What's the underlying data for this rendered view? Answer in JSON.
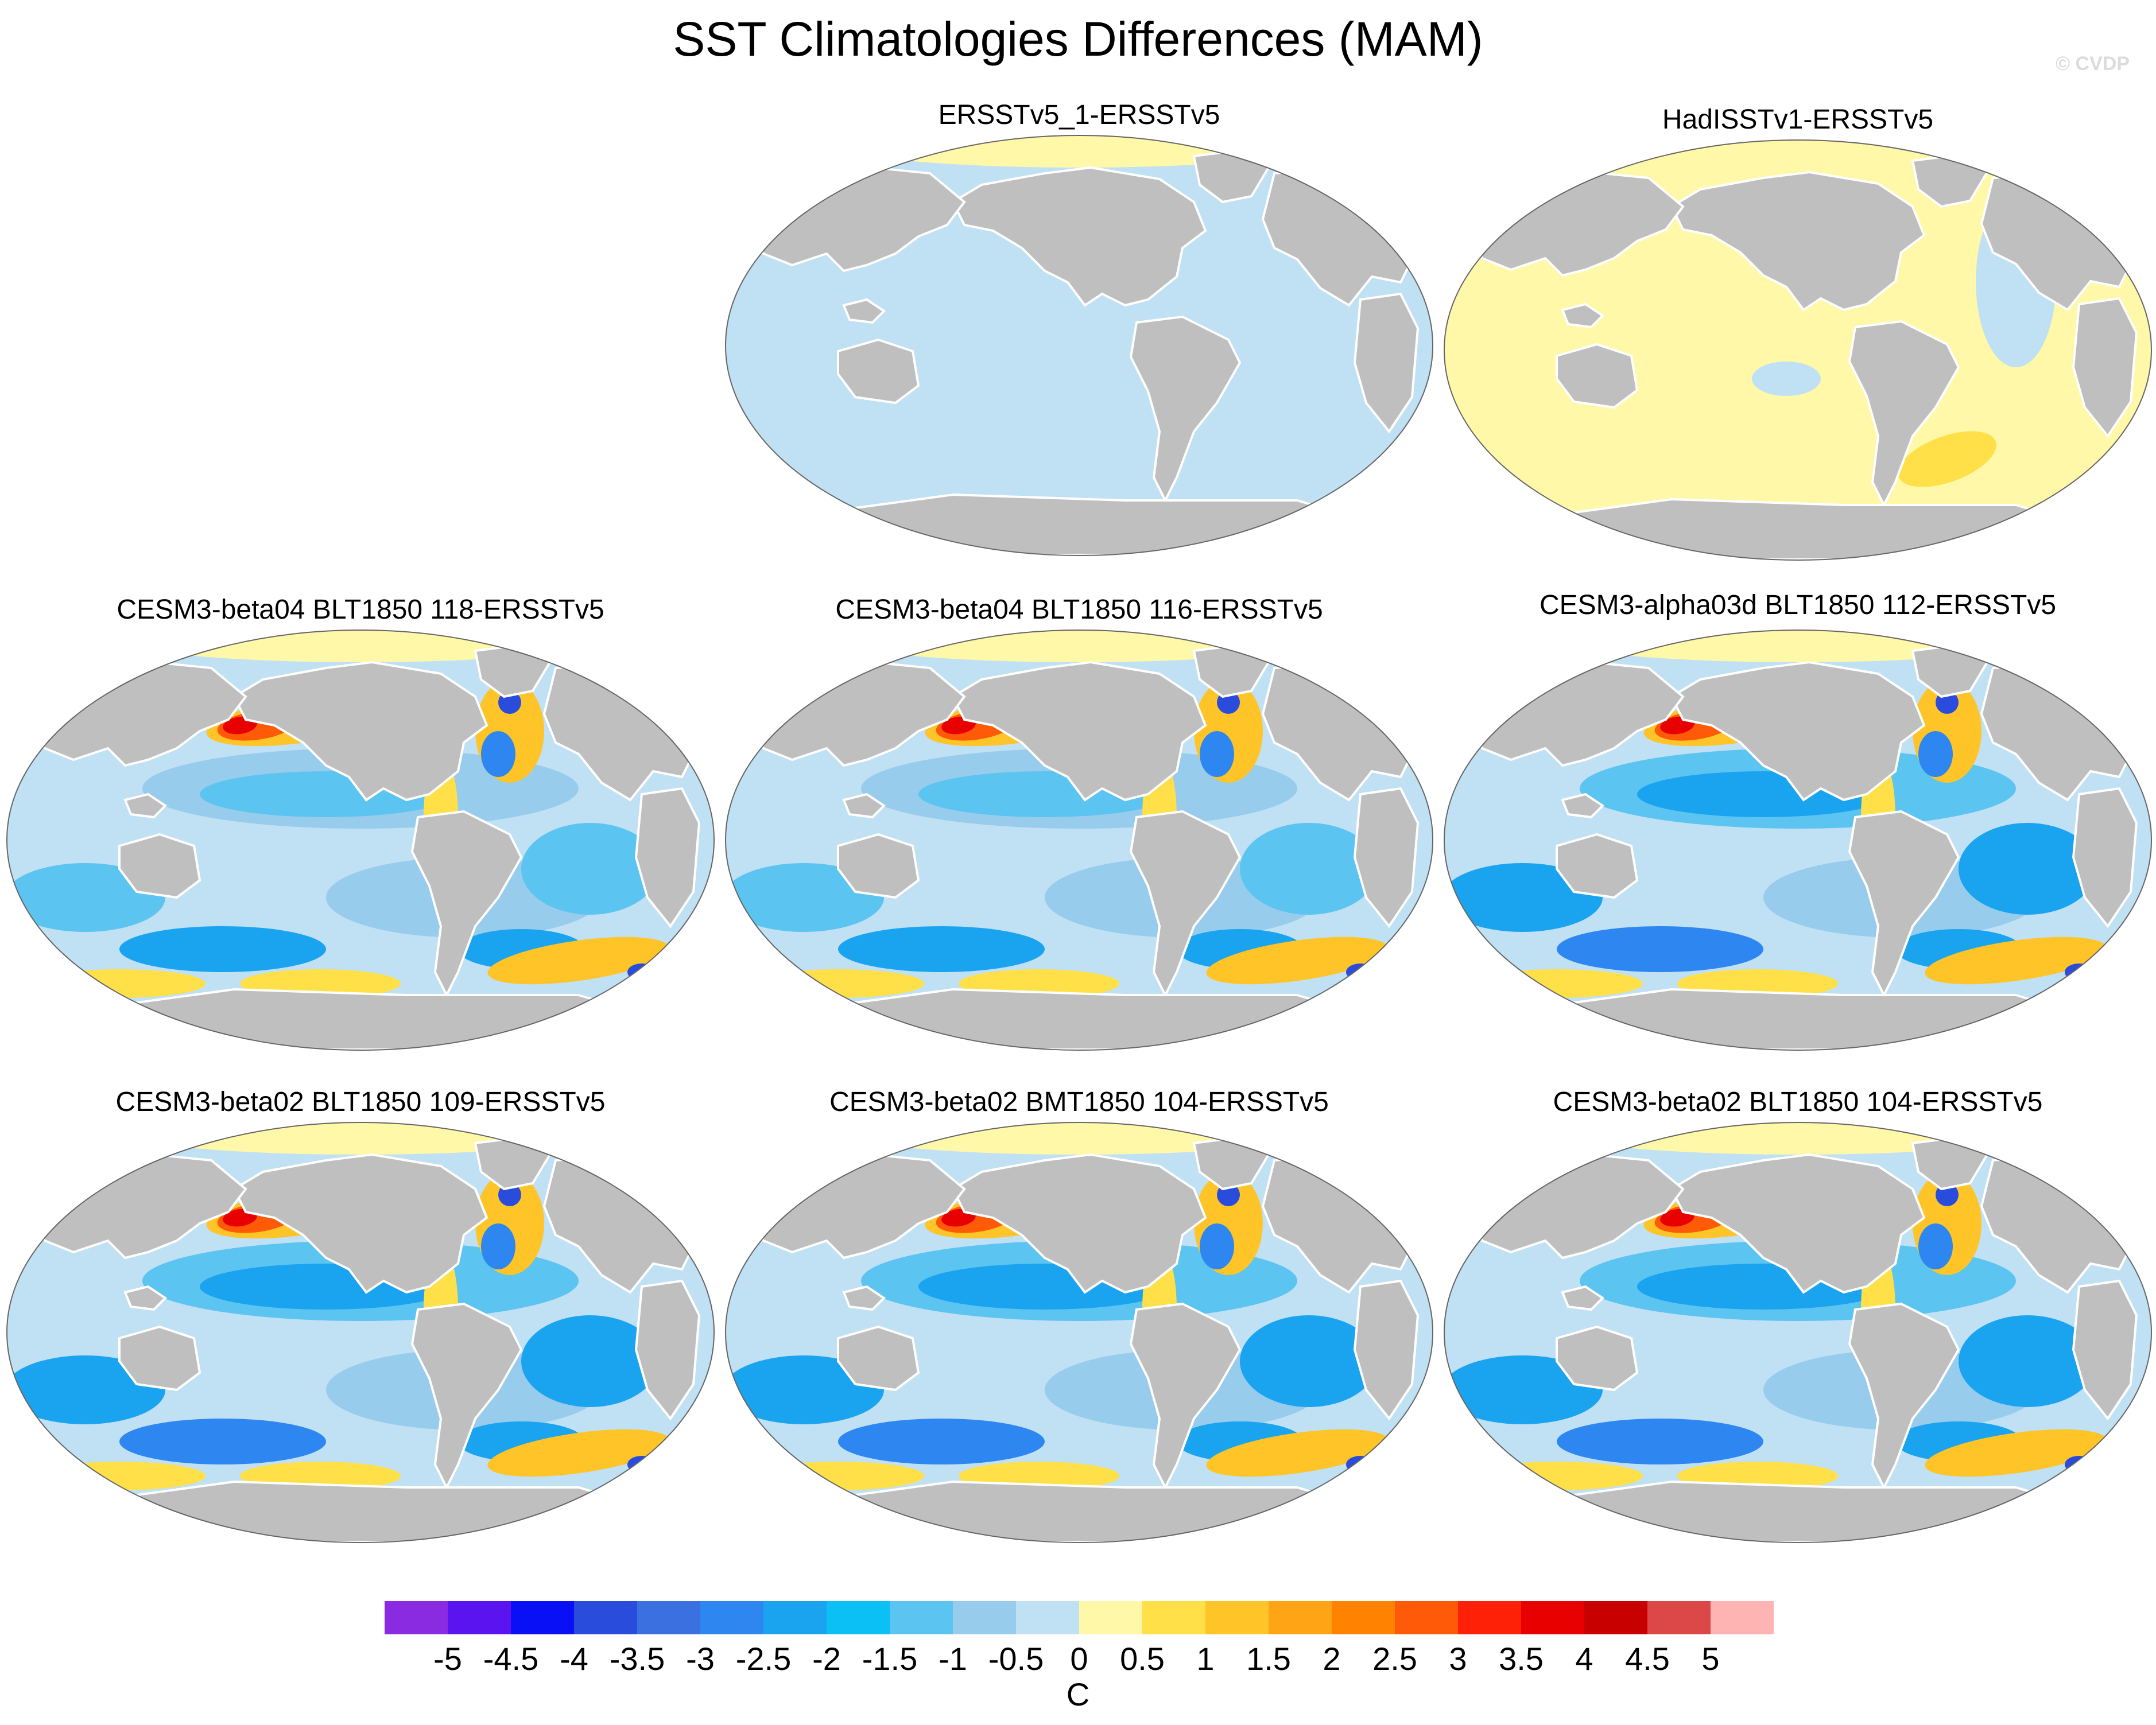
{
  "figure": {
    "title": "SST Climatologies Differences (MAM)",
    "watermark": "© CVDP"
  },
  "panels": [
    {
      "id": "p1",
      "title": "ERSSTv5_1-ERSSTv5",
      "style": "uniform_cool"
    },
    {
      "id": "p2",
      "title": "HadISSTv1-ERSSTv5",
      "style": "uniform_warm"
    },
    {
      "id": "p3",
      "title": "CESM3-beta04 BLT1850 118-ERSSTv5",
      "style": "model"
    },
    {
      "id": "p4",
      "title": "CESM3-beta04 BLT1850 116-ERSSTv5",
      "style": "model"
    },
    {
      "id": "p5",
      "title": "CESM3-alpha03d BLT1850 112-ERSSTv5",
      "style": "model_cold"
    },
    {
      "id": "p6",
      "title": "CESM3-beta02 BLT1850 109-ERSSTv5",
      "style": "model_cold"
    },
    {
      "id": "p7",
      "title": "CESM3-beta02 BMT1850 104-ERSSTv5",
      "style": "model_cold"
    },
    {
      "id": "p8",
      "title": "CESM3-beta02 BLT1850 104-ERSSTv5",
      "style": "model_cold"
    }
  ],
  "colorbar": {
    "units": "C",
    "tick_labels": [
      "-5",
      "-4.5",
      "-4",
      "-3.5",
      "-3",
      "-2.5",
      "-2",
      "-1.5",
      "-1",
      "-0.5",
      "0",
      "0.5",
      "1",
      "1.5",
      "2",
      "2.5",
      "3",
      "3.5",
      "4",
      "4.5",
      "5"
    ],
    "colors": [
      "#8a2be2",
      "#5a14f0",
      "#0a10f5",
      "#2a4cdc",
      "#3a70e0",
      "#2e86f0",
      "#1aa4f0",
      "#0ac0f4",
      "#5cc4f0",
      "#98ccec",
      "#c0e0f4",
      "#fff8a8",
      "#ffe048",
      "#ffc428",
      "#ffa414",
      "#ff8200",
      "#ff5a08",
      "#ff2008",
      "#e80000",
      "#c80000",
      "#dc4848",
      "#ffb4b4"
    ]
  },
  "colors": {
    "land": "#bfbfbf",
    "coast": "#ffffff",
    "ocean_cool": "#c0e0f4",
    "ocean_warm": "#fff8a8"
  }
}
